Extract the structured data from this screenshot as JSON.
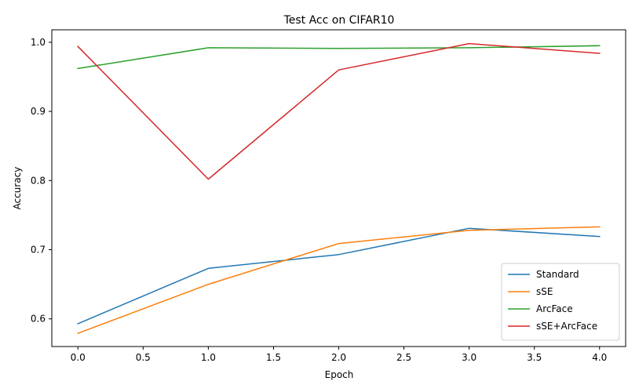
{
  "chart_data": {
    "type": "line",
    "title": "Test Acc on CIFAR10",
    "xlabel": "Epoch",
    "ylabel": "Accuracy",
    "x": [
      0,
      1,
      2,
      3,
      4
    ],
    "xlim": [
      -0.2,
      4.2
    ],
    "ylim": [
      0.56,
      1.018
    ],
    "xticks": [
      0.0,
      0.5,
      1.0,
      1.5,
      2.0,
      2.5,
      3.0,
      3.5,
      4.0
    ],
    "xtick_labels": [
      "0.0",
      "0.5",
      "1.0",
      "1.5",
      "2.0",
      "2.5",
      "3.0",
      "3.5",
      "4.0"
    ],
    "yticks": [
      0.6,
      0.7,
      0.8,
      0.9,
      1.0
    ],
    "ytick_labels": [
      "0.6",
      "0.7",
      "0.8",
      "0.9",
      "1.0"
    ],
    "grid": false,
    "legend_position": "lower-right",
    "series": [
      {
        "name": "Standard",
        "color": "#1f77b4",
        "values": [
          0.593,
          0.673,
          0.693,
          0.731,
          0.719
        ]
      },
      {
        "name": "sSE",
        "color": "#ff7f0e",
        "values": [
          0.579,
          0.65,
          0.709,
          0.728,
          0.733
        ]
      },
      {
        "name": "ArcFace",
        "color": "#2ca02c",
        "values": [
          0.962,
          0.992,
          0.991,
          0.992,
          0.995
        ]
      },
      {
        "name": "sSE+ArcFace",
        "color": "#d62728",
        "values": [
          0.994,
          0.802,
          0.96,
          0.998,
          0.984
        ]
      }
    ]
  }
}
